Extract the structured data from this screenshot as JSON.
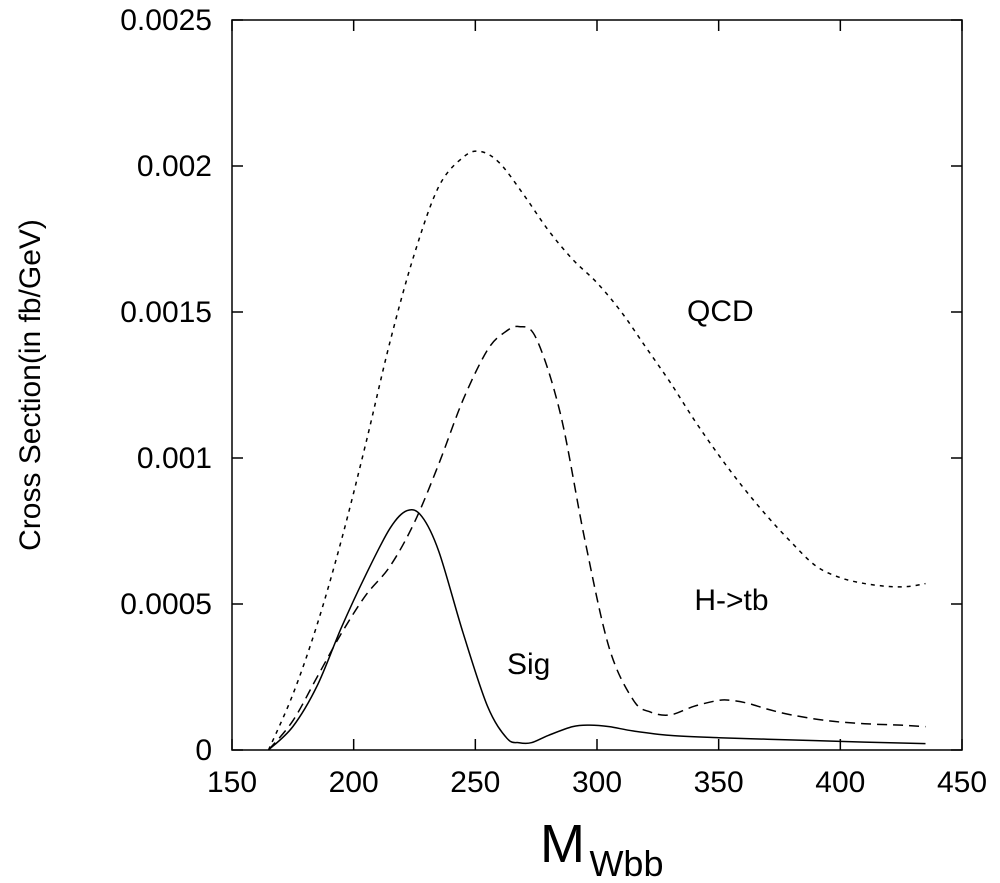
{
  "chart_data": {
    "type": "line",
    "ylabel": "Cross Section(in fb/GeV)",
    "xlabel": {
      "main": "M",
      "sub": "Wbb"
    },
    "xlim": [
      150,
      450
    ],
    "ylim": [
      0,
      0.0025
    ],
    "xticks": [
      150,
      200,
      250,
      300,
      350,
      400,
      450
    ],
    "xtick_labels": [
      "150",
      "200",
      "250",
      "300",
      "350",
      "400",
      "450"
    ],
    "yticks": [
      0,
      0.0005,
      0.001,
      0.0015,
      0.002,
      0.0025
    ],
    "ytick_labels": [
      "0",
      "0.0005",
      "0.001",
      "0.0015",
      "0.002",
      "0.0025"
    ],
    "grid": false,
    "series": [
      {
        "name": "QCD",
        "dash": "short-dash",
        "x": [
          165,
          175,
          185,
          195,
          205,
          215,
          225,
          235,
          245,
          252,
          260,
          270,
          280,
          290,
          300,
          310,
          320,
          330,
          340,
          350,
          360,
          370,
          380,
          390,
          400,
          410,
          420,
          428,
          435
        ],
        "y": [
          0.0,
          0.00019,
          0.00043,
          0.00072,
          0.00105,
          0.0014,
          0.0017,
          0.00193,
          0.00203,
          0.00205,
          0.00201,
          0.0019,
          0.00178,
          0.00168,
          0.0016,
          0.0015,
          0.00138,
          0.00126,
          0.00113,
          0.00101,
          0.0009,
          0.0008,
          0.00071,
          0.00063,
          0.00059,
          0.00057,
          0.00056,
          0.00056,
          0.00057
        ]
      },
      {
        "name": "H->tb",
        "dash": "long-dash",
        "x": [
          165,
          175,
          185,
          195,
          205,
          215,
          225,
          235,
          245,
          255,
          262,
          268,
          275,
          285,
          295,
          305,
          315,
          322,
          330,
          340,
          350,
          355,
          362,
          370,
          380,
          395,
          410,
          425,
          435
        ],
        "y": [
          0.0,
          0.0001,
          0.00025,
          0.0004,
          0.00053,
          0.00063,
          0.00078,
          0.00098,
          0.0012,
          0.00137,
          0.00143,
          0.00145,
          0.00141,
          0.00115,
          0.00072,
          0.00035,
          0.00017,
          0.00013,
          0.00012,
          0.00015,
          0.00017,
          0.00017,
          0.00016,
          0.00014,
          0.00012,
          0.0001,
          9e-05,
          8.5e-05,
          8e-05
        ]
      },
      {
        "name": "Sig",
        "dash": "solid",
        "x": [
          165,
          175,
          185,
          195,
          205,
          215,
          222,
          228,
          235,
          245,
          255,
          263,
          268,
          273,
          280,
          290,
          297,
          305,
          315,
          330,
          350,
          370,
          390,
          410,
          435
        ],
        "y": [
          0.0,
          8e-05,
          0.00022,
          0.00042,
          0.0006,
          0.00076,
          0.00082,
          0.0008,
          0.00068,
          0.0004,
          0.00015,
          4e-05,
          2.5e-05,
          2.5e-05,
          5e-05,
          8e-05,
          8.5e-05,
          8e-05,
          6.5e-05,
          5e-05,
          4.2e-05,
          3.7e-05,
          3.2e-05,
          2.7e-05,
          2.2e-05
        ]
      }
    ],
    "annotations": [
      {
        "text": "QCD",
        "x": 337,
        "y": 0.00147
      },
      {
        "text": "H->tb",
        "x": 340,
        "y": 0.00048
      },
      {
        "text": "Sig",
        "x": 263,
        "y": 0.00026
      }
    ],
    "color": "#000000"
  }
}
